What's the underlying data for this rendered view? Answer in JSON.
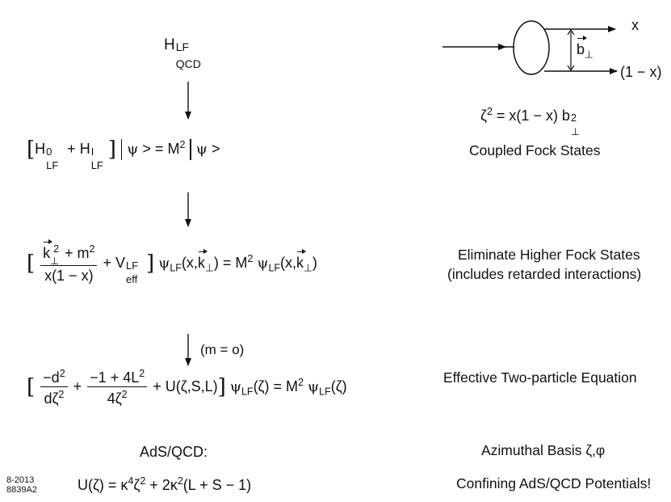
{
  "equations": {
    "hamiltonian": {
      "base": "H",
      "sup": "LF",
      "sub": "QCD"
    },
    "eigen": {
      "h": "H",
      "sup0": "0",
      "supI": "I",
      "sub": "LF",
      "plus": "+",
      "psi": "ψ",
      "ket": ">",
      "eq": "=",
      "M": "M",
      "two": "2"
    },
    "light_front": {
      "k": "k",
      "perp": "⊥",
      "two": "2",
      "m2": "+ m",
      "x_den": "x(1 − x)",
      "V": "+ V",
      "V_sup": "LF",
      "V_sub": "eff",
      "psi": "ψ",
      "LF": "LF",
      "args_open": "(x,",
      "args_close": ")",
      "eq": "= M",
      "psi2": "ψ",
      "args2": "(x,"
    },
    "condition": "(m = o)",
    "schrodinger": {
      "minus_d2": "−d",
      "two": "2",
      "dzeta": "dζ",
      "num": "−1 + 4L",
      "den": "4ζ",
      "U": "+ U(ζ,S,L)",
      "psi": "ψ",
      "LF": "LF",
      "zeta_arg": "(ζ)",
      "eq": "= M",
      "psi2": "ψ"
    },
    "ads_title": "AdS/QCD:",
    "potential": {
      "lhs": "U(ζ) = κ",
      "four": "4",
      "zeta": "ζ",
      "two": "2",
      "mid": "+ 2κ",
      "tail": "(L + S − 1)"
    },
    "fock_formula": {
      "zeta": "ζ",
      "two": "2",
      "mid": "= x(1 − x) b",
      "perp": "⊥"
    }
  },
  "labels": {
    "coupled": "Coupled Fock States",
    "eliminate_1": "Eliminate Higher Fock States",
    "eliminate_2": "(includes retarded interactions)",
    "effective": "Effective Two-particle Equation",
    "azimuthal": "Azimuthal Basis ζ,φ",
    "confining": "Confining AdS/QCD Potentials!"
  },
  "diagram": {
    "x_label": "x",
    "one_minus_x": "(1 − x)",
    "b": "b",
    "perp": "⊥"
  },
  "figure_code": {
    "line1": "8-2013",
    "line2": "8839A2"
  }
}
